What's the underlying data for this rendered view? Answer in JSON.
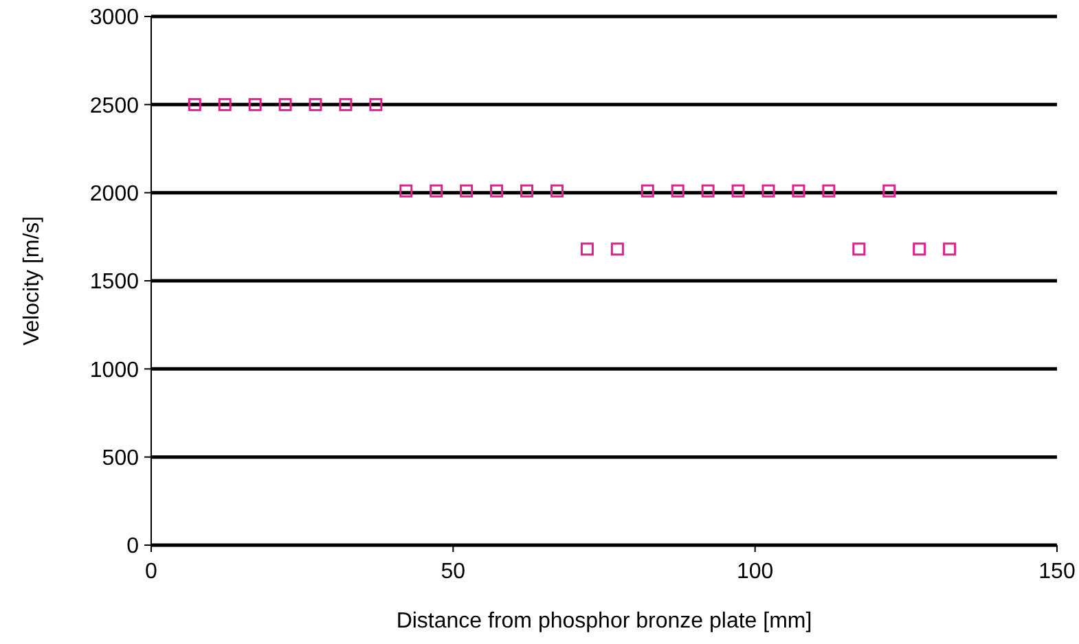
{
  "chart_data": {
    "type": "scatter",
    "xlabel": "Distance from phosphor bronze plate [mm]",
    "ylabel": "Velocity [m/s]",
    "x": [
      7.2,
      12.2,
      17.2,
      22.2,
      27.2,
      32.2,
      37.2,
      42.2,
      47.2,
      52.2,
      57.2,
      62.2,
      67.2,
      72.2,
      77.2,
      82.2,
      87.2,
      92.2,
      97.2,
      102.2,
      107.2,
      112.2,
      117.2,
      122.2,
      127.2,
      132.2
    ],
    "series": [
      {
        "color": "#e0208c",
        "values": [
          2500,
          2500,
          2500,
          2500,
          2500,
          2500,
          2500,
          2010,
          2010,
          2010,
          2010,
          2010,
          2010,
          1680,
          1680,
          2010,
          2010,
          2010,
          2010,
          2010,
          2010,
          2010,
          1680,
          2010,
          1680,
          1680
        ]
      }
    ],
    "xlim": [
      0,
      150
    ],
    "xticks": [
      0,
      50,
      100,
      150
    ],
    "ylim": [
      0,
      3000
    ],
    "yticks": [
      0,
      500,
      1000,
      1500,
      2000,
      2500,
      3000
    ],
    "grid": "y",
    "marker": "square"
  }
}
